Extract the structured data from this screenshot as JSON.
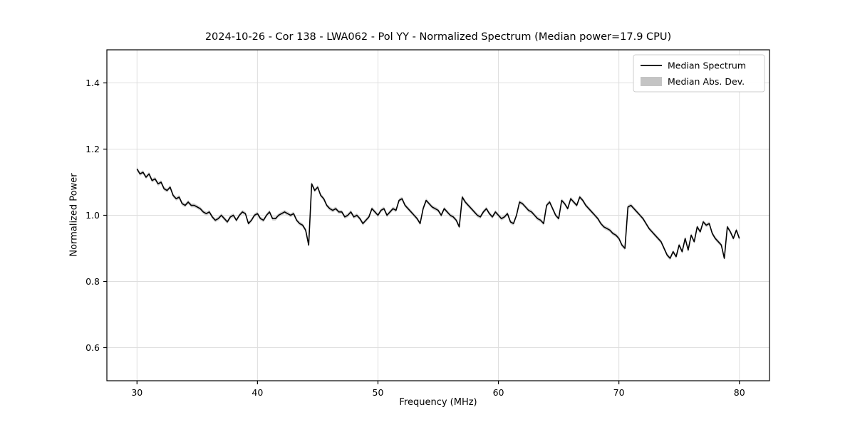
{
  "chart_data": {
    "type": "line",
    "title": "2024-10-26 - Cor 138 - LWA062 - Pol YY - Normalized Spectrum (Median power=17.9 CPU)",
    "xlabel": "Frequency (MHz)",
    "ylabel": "Normalized Power",
    "xlim": [
      27.5,
      82.5
    ],
    "ylim": [
      0.5,
      1.5
    ],
    "xticks": [
      30,
      40,
      50,
      60,
      70,
      80
    ],
    "xtick_labels": [
      "30",
      "40",
      "50",
      "60",
      "70",
      "80"
    ],
    "yticks": [
      0.6,
      0.8,
      1.0,
      1.2,
      1.4
    ],
    "ytick_labels": [
      "0.6",
      "0.8",
      "1.0",
      "1.2",
      "1.4"
    ],
    "grid": true,
    "legend_position": "upper right",
    "legend": [
      {
        "label": "Median Spectrum",
        "type": "line",
        "color": "#000000"
      },
      {
        "label": "Median Abs. Dev.",
        "type": "patch",
        "color": "#c4c4c4"
      }
    ],
    "series": [
      {
        "name": "Median Spectrum",
        "color": "#000000",
        "x_start": 30.0,
        "x_step": 0.25,
        "mad": 0.006,
        "values": [
          1.14,
          1.125,
          1.13,
          1.115,
          1.125,
          1.105,
          1.11,
          1.095,
          1.1,
          1.08,
          1.075,
          1.085,
          1.06,
          1.05,
          1.055,
          1.035,
          1.03,
          1.04,
          1.03,
          1.03,
          1.025,
          1.02,
          1.01,
          1.005,
          1.01,
          0.995,
          0.985,
          0.99,
          1.0,
          0.99,
          0.98,
          0.995,
          1.0,
          0.985,
          1.0,
          1.01,
          1.005,
          0.975,
          0.985,
          1.0,
          1.005,
          0.99,
          0.985,
          1.0,
          1.01,
          0.99,
          0.99,
          1.0,
          1.005,
          1.01,
          1.005,
          1.0,
          1.005,
          0.985,
          0.975,
          0.97,
          0.955,
          0.91,
          1.095,
          1.075,
          1.085,
          1.06,
          1.05,
          1.03,
          1.02,
          1.015,
          1.02,
          1.01,
          1.01,
          0.995,
          1.0,
          1.01,
          0.995,
          1.0,
          0.99,
          0.975,
          0.985,
          0.995,
          1.02,
          1.01,
          1.0,
          1.015,
          1.02,
          1.0,
          1.01,
          1.02,
          1.015,
          1.045,
          1.05,
          1.03,
          1.02,
          1.01,
          1.0,
          0.99,
          0.975,
          1.02,
          1.045,
          1.035,
          1.025,
          1.02,
          1.015,
          1.0,
          1.02,
          1.01,
          1.0,
          0.995,
          0.985,
          0.965,
          1.055,
          1.04,
          1.03,
          1.02,
          1.01,
          1.0,
          0.995,
          1.01,
          1.02,
          1.005,
          0.995,
          1.01,
          1.0,
          0.99,
          0.995,
          1.005,
          0.98,
          0.975,
          1.0,
          1.04,
          1.035,
          1.025,
          1.015,
          1.01,
          1.0,
          0.99,
          0.985,
          0.975,
          1.03,
          1.04,
          1.02,
          1.0,
          0.99,
          1.045,
          1.035,
          1.02,
          1.05,
          1.04,
          1.03,
          1.055,
          1.045,
          1.03,
          1.02,
          1.01,
          1.0,
          0.99,
          0.975,
          0.965,
          0.96,
          0.955,
          0.945,
          0.94,
          0.93,
          0.91,
          0.9,
          1.025,
          1.03,
          1.02,
          1.01,
          1.0,
          0.99,
          0.975,
          0.96,
          0.95,
          0.94,
          0.93,
          0.92,
          0.9,
          0.88,
          0.87,
          0.89,
          0.875,
          0.91,
          0.89,
          0.93,
          0.895,
          0.94,
          0.92,
          0.965,
          0.95,
          0.98,
          0.97,
          0.975,
          0.945,
          0.93,
          0.92,
          0.91,
          0.87,
          0.965,
          0.95,
          0.93,
          0.955,
          0.93
        ]
      }
    ],
    "colors": {
      "line": "#000000",
      "band": "#c4c4c4",
      "grid": "#dedede",
      "frame": "#000000",
      "legend_border": "#cccccc",
      "background": "#ffffff"
    }
  }
}
